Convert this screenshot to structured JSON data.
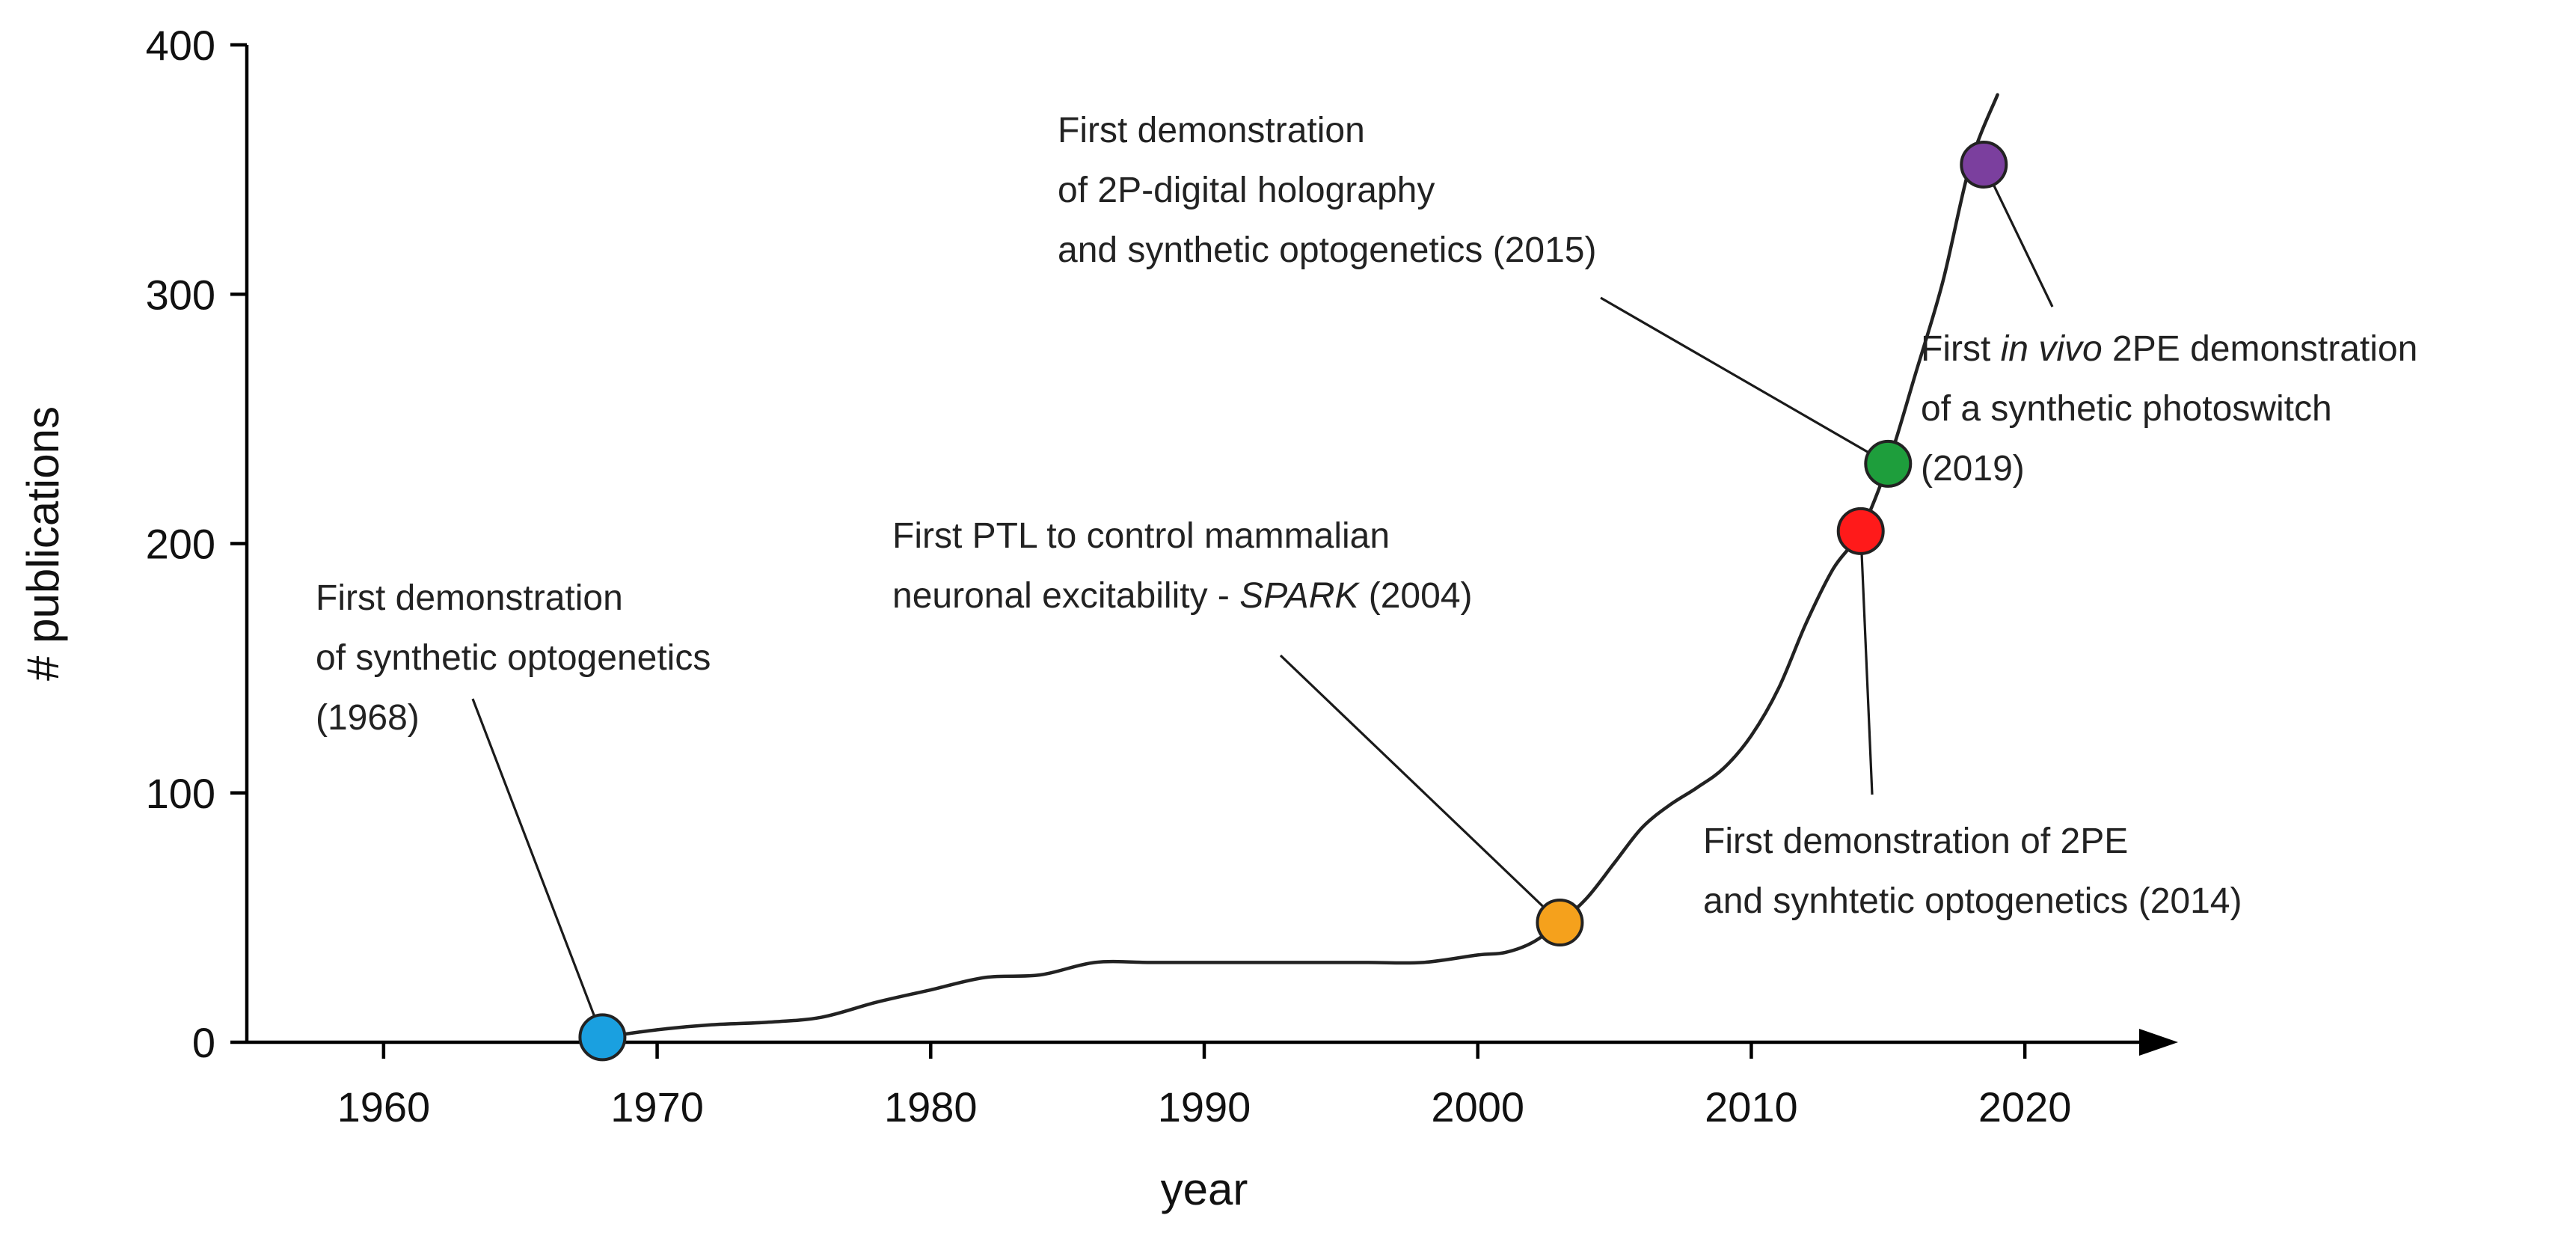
{
  "chart_data": {
    "type": "line",
    "title": "",
    "xlabel": "year",
    "ylabel": "# publications",
    "xlim": [
      1955,
      2025
    ],
    "ylim": [
      0,
      400
    ],
    "x_ticks": [
      1960,
      1970,
      1980,
      1990,
      2000,
      2010,
      2020
    ],
    "y_ticks": [
      0,
      100,
      200,
      300,
      400
    ],
    "series": [
      {
        "name": "publications",
        "x": [
          1968,
          1970,
          1972,
          1974,
          1976,
          1978,
          1980,
          1982,
          1984,
          1986,
          1988,
          1990,
          1992,
          1994,
          1996,
          1998,
          2000,
          2001,
          2002,
          2003,
          2004,
          2005,
          2006,
          2007,
          2008,
          2009,
          2010,
          2011,
          2012,
          2013,
          2014,
          2015,
          2016,
          2017,
          2018,
          2019
        ],
        "y": [
          2,
          5,
          7,
          8,
          10,
          16,
          21,
          26,
          27,
          32,
          32,
          32,
          32,
          32,
          32,
          32,
          35,
          36,
          40,
          48,
          58,
          72,
          86,
          95,
          102,
          110,
          123,
          142,
          168,
          190,
          205,
          232,
          268,
          305,
          352,
          380
        ]
      }
    ],
    "milestones": [
      {
        "x": 1968,
        "y": 2,
        "color": "#1aa0e0",
        "lines": [
          "First demonstration",
          "of synthetic optogenetics",
          "(1968)"
        ]
      },
      {
        "x": 2003,
        "y": 48,
        "color": "#f5a11c",
        "lines": [
          "First PTL to control mammalian",
          "neuronal excitability - ",
          "SPARK",
          " (2004)"
        ]
      },
      {
        "x": 2014,
        "y": 205,
        "color": "#ff1a1a",
        "lines": [
          "First demonstration of 2PE",
          "and synhtetic optogenetics (2014)"
        ]
      },
      {
        "x": 2015,
        "y": 232,
        "color": "#1e9e3c",
        "lines": [
          "First demonstration",
          "of 2P-digital holography",
          "and synthetic optogenetics (2015)"
        ]
      },
      {
        "x": 2018.5,
        "y": 352,
        "color": "#7b3f9e",
        "lines": [
          "First ",
          "in vivo",
          " 2PE demonstration",
          "of a synthetic photoswitch",
          "(2019)"
        ]
      }
    ]
  }
}
